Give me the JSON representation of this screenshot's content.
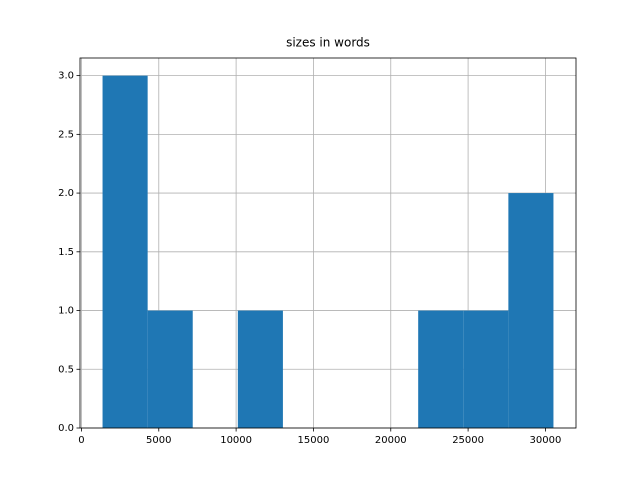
{
  "chart_data": {
    "type": "histogram",
    "title": "sizes in words",
    "bins": [
      1364,
      4280,
      7195,
      10111,
      13026,
      15942,
      18857,
      21773,
      24688,
      27604,
      30519
    ],
    "counts": [
      3,
      1,
      0,
      1,
      0,
      0,
      0,
      1,
      1,
      2
    ],
    "color": "#1f77b4",
    "xlim": [
      -94,
      31977
    ],
    "xticks": [
      0,
      5000,
      10000,
      15000,
      20000,
      25000,
      30000
    ],
    "ylim": [
      0,
      3.15
    ],
    "yticks": [
      {
        "value": 0,
        "label": "0.0"
      },
      {
        "value": 0.5,
        "label": "0.5"
      },
      {
        "value": 1,
        "label": "1.0"
      },
      {
        "value": 1.5,
        "label": "1.5"
      },
      {
        "value": 2,
        "label": "2.0"
      },
      {
        "value": 2.5,
        "label": "2.5"
      },
      {
        "value": 3,
        "label": "3.0"
      }
    ],
    "grid": true
  }
}
